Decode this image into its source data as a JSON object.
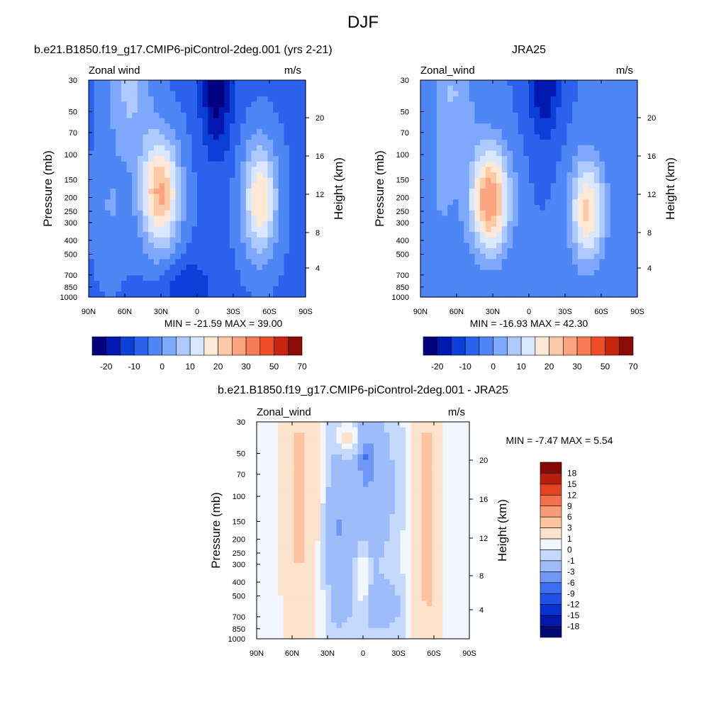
{
  "figure_title": "DJF",
  "colors": {
    "wind_palette": [
      "#00007f",
      "#0018b0",
      "#0a3fd8",
      "#2a62ee",
      "#4f86f5",
      "#7ea8fb",
      "#adc9fd",
      "#d9e8fe",
      "#ffe9d6",
      "#fdcaa8",
      "#fca47f",
      "#f77b53",
      "#ed4e28",
      "#c8250f",
      "#8a0c04"
    ],
    "diff_palette": [
      "#020a72",
      "#0419ac",
      "#0732cf",
      "#1f52e6",
      "#3c6ef0",
      "#6f97f6",
      "#9dbcf9",
      "#c4d9fc",
      "#f2f6fe",
      "#fde3cb",
      "#fbc3a0",
      "#f89c76",
      "#f2704b",
      "#e44321",
      "#b9200b",
      "#840906"
    ]
  },
  "chart_data": [
    {
      "type": "heatmap",
      "title": "b.e21.B1850.f19_g17.CMIP6-piControl-2deg.001 (yrs 2-21)",
      "left_label": "Zonal wind",
      "units": "m/s",
      "ylabel": "Pressure (mb)",
      "ylabel_right": "Height (km)",
      "x_ticks": [
        "90N",
        "60N",
        "30N",
        "0",
        "30S",
        "60S",
        "90S"
      ],
      "y_ticks": [
        "30",
        "50",
        "70",
        "100",
        "150",
        "200",
        "250",
        "300",
        "400",
        "500",
        "700",
        "850",
        "1000"
      ],
      "y_right_ticks": [
        "20",
        "16",
        "12",
        "8",
        "4"
      ],
      "stats": "MIN = -21.59  MAX =  39.00",
      "colorbar": {
        "orientation": "horizontal",
        "labels": [
          "-20",
          "-10",
          "0",
          "10",
          "20",
          "30",
          "50",
          "70"
        ]
      }
    },
    {
      "type": "heatmap",
      "title": "JRA25",
      "left_label": "Zonal_wind",
      "units": "m/s",
      "ylabel": "Pressure (mb)",
      "ylabel_right": "Height (km)",
      "x_ticks": [
        "90N",
        "60N",
        "30N",
        "0",
        "30S",
        "60S",
        "90S"
      ],
      "y_ticks": [
        "30",
        "50",
        "70",
        "100",
        "150",
        "200",
        "250",
        "300",
        "400",
        "500",
        "700",
        "850",
        "1000"
      ],
      "y_right_ticks": [
        "20",
        "16",
        "12",
        "8",
        "4"
      ],
      "stats": "MIN = -16.93  MAX =  42.30",
      "colorbar": {
        "orientation": "horizontal",
        "labels": [
          "-20",
          "-10",
          "0",
          "10",
          "20",
          "30",
          "50",
          "70"
        ]
      }
    },
    {
      "type": "heatmap",
      "title": "b.e21.B1850.f19_g17.CMIP6-piControl-2deg.001 - JRA25",
      "left_label": "Zonal_wind",
      "units": "m/s",
      "ylabel": "Pressure (mb)",
      "ylabel_right": "Height (km)",
      "x_ticks": [
        "90N",
        "60N",
        "30N",
        "0",
        "30S",
        "60S",
        "90S"
      ],
      "y_ticks": [
        "30",
        "50",
        "70",
        "100",
        "150",
        "200",
        "250",
        "300",
        "400",
        "500",
        "700",
        "850",
        "1000"
      ],
      "y_right_ticks": [
        "20",
        "16",
        "12",
        "8",
        "4"
      ],
      "stats": "MIN =  -7.47  MAX =   5.54",
      "colorbar": {
        "orientation": "vertical",
        "labels": [
          "18",
          "15",
          "12",
          "9",
          "6",
          "3",
          "1",
          "0",
          "-1",
          "-3",
          "-6",
          "-9",
          "-12",
          "-15",
          "-18"
        ]
      }
    }
  ]
}
